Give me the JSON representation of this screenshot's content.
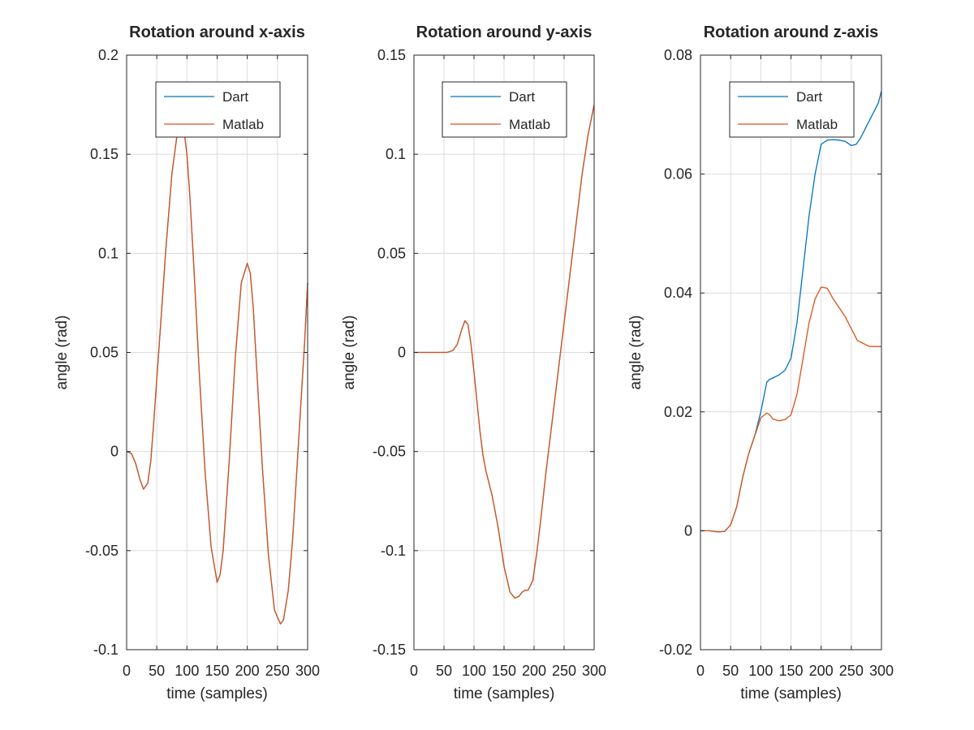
{
  "chart_data": [
    {
      "type": "line",
      "title": "Rotation around x-axis",
      "xlabel": "time (samples)",
      "ylabel": "angle (rad)",
      "xlim": [
        0,
        300
      ],
      "ylim": [
        -0.1,
        0.2
      ],
      "xticks": [
        0,
        50,
        100,
        150,
        200,
        250,
        300
      ],
      "yticks": [
        -0.1,
        -0.05,
        0,
        0.05,
        0.1,
        0.15,
        0.2
      ],
      "xtick_labels": [
        "0",
        "50",
        "100",
        "150",
        "200",
        "250",
        "300"
      ],
      "ytick_labels": [
        "-0.1",
        "-0.05",
        "0",
        "0.05",
        "0.1",
        "0.15",
        "0.2"
      ],
      "grid": true,
      "legend": "top-center",
      "series": [
        {
          "name": "Dart",
          "color": "#0072BD",
          "x": [
            0,
            8,
            15,
            22,
            28,
            35,
            40,
            45,
            55,
            65,
            75,
            85,
            95,
            100,
            105,
            112,
            120,
            130,
            140,
            150,
            155,
            160,
            170,
            180,
            190,
            200,
            205,
            210,
            215,
            225,
            235,
            245,
            255,
            260,
            268,
            275,
            285,
            295,
            300
          ],
          "y": [
            0,
            -0.001,
            -0.006,
            -0.014,
            -0.019,
            -0.016,
            -0.005,
            0.015,
            0.058,
            0.102,
            0.14,
            0.163,
            0.162,
            0.15,
            0.128,
            0.09,
            0.042,
            -0.01,
            -0.048,
            -0.066,
            -0.062,
            -0.05,
            -0.005,
            0.047,
            0.085,
            0.095,
            0.09,
            0.072,
            0.045,
            -0.008,
            -0.052,
            -0.08,
            -0.087,
            -0.085,
            -0.07,
            -0.045,
            0.005,
            0.055,
            0.085
          ]
        },
        {
          "name": "Matlab",
          "color": "#D95319",
          "x": [
            0,
            8,
            15,
            22,
            28,
            35,
            40,
            45,
            55,
            65,
            75,
            85,
            95,
            100,
            105,
            112,
            120,
            130,
            140,
            150,
            155,
            160,
            170,
            180,
            190,
            200,
            205,
            210,
            215,
            225,
            235,
            245,
            255,
            260,
            268,
            275,
            285,
            295,
            300
          ],
          "y": [
            0,
            -0.001,
            -0.006,
            -0.014,
            -0.019,
            -0.016,
            -0.005,
            0.015,
            0.058,
            0.102,
            0.14,
            0.163,
            0.162,
            0.15,
            0.128,
            0.09,
            0.042,
            -0.01,
            -0.048,
            -0.066,
            -0.062,
            -0.05,
            -0.005,
            0.047,
            0.085,
            0.095,
            0.09,
            0.072,
            0.045,
            -0.008,
            -0.052,
            -0.08,
            -0.087,
            -0.085,
            -0.07,
            -0.045,
            0.005,
            0.055,
            0.085
          ]
        }
      ]
    },
    {
      "type": "line",
      "title": "Rotation around y-axis",
      "xlabel": "time (samples)",
      "ylabel": "angle (rad)",
      "xlim": [
        0,
        300
      ],
      "ylim": [
        -0.15,
        0.15
      ],
      "xticks": [
        0,
        50,
        100,
        150,
        200,
        250,
        300
      ],
      "yticks": [
        -0.15,
        -0.1,
        -0.05,
        0,
        0.05,
        0.1,
        0.15
      ],
      "xtick_labels": [
        "0",
        "50",
        "100",
        "150",
        "200",
        "250",
        "300"
      ],
      "ytick_labels": [
        "-0.15",
        "-0.1",
        "-0.05",
        "0",
        "0.05",
        "0.1",
        "0.15"
      ],
      "grid": true,
      "legend": "top-center",
      "series": [
        {
          "name": "Dart",
          "color": "#0072BD",
          "x": [
            0,
            20,
            40,
            55,
            65,
            72,
            80,
            85,
            90,
            95,
            100,
            105,
            110,
            115,
            120,
            130,
            140,
            150,
            160,
            168,
            175,
            180,
            185,
            190,
            198,
            205,
            212,
            220,
            230,
            240,
            250,
            260,
            270,
            280,
            290,
            300
          ],
          "y": [
            0,
            0,
            0,
            0,
            0.001,
            0.004,
            0.012,
            0.016,
            0.014,
            0.004,
            -0.01,
            -0.025,
            -0.04,
            -0.052,
            -0.06,
            -0.072,
            -0.088,
            -0.108,
            -0.121,
            -0.124,
            -0.123,
            -0.121,
            -0.12,
            -0.12,
            -0.115,
            -0.1,
            -0.082,
            -0.06,
            -0.035,
            -0.01,
            0.015,
            0.04,
            0.065,
            0.09,
            0.11,
            0.125
          ]
        },
        {
          "name": "Matlab",
          "color": "#D95319",
          "x": [
            0,
            20,
            40,
            55,
            65,
            72,
            80,
            85,
            90,
            95,
            100,
            105,
            110,
            115,
            120,
            130,
            140,
            150,
            160,
            168,
            175,
            180,
            185,
            190,
            198,
            205,
            212,
            220,
            230,
            240,
            250,
            260,
            270,
            280,
            290,
            300
          ],
          "y": [
            0,
            0,
            0,
            0,
            0.001,
            0.004,
            0.012,
            0.016,
            0.014,
            0.004,
            -0.01,
            -0.025,
            -0.04,
            -0.052,
            -0.06,
            -0.072,
            -0.088,
            -0.108,
            -0.121,
            -0.124,
            -0.123,
            -0.121,
            -0.12,
            -0.12,
            -0.115,
            -0.1,
            -0.082,
            -0.06,
            -0.035,
            -0.01,
            0.015,
            0.04,
            0.065,
            0.09,
            0.11,
            0.125
          ]
        }
      ]
    },
    {
      "type": "line",
      "title": "Rotation around z-axis",
      "xlabel": "time (samples)",
      "ylabel": "angle (rad)",
      "xlim": [
        0,
        300
      ],
      "ylim": [
        -0.02,
        0.08
      ],
      "xticks": [
        0,
        50,
        100,
        150,
        200,
        250,
        300
      ],
      "yticks": [
        -0.02,
        0,
        0.02,
        0.04,
        0.06,
        0.08
      ],
      "xtick_labels": [
        "0",
        "50",
        "100",
        "150",
        "200",
        "250",
        "300"
      ],
      "ytick_labels": [
        "-0.02",
        "0",
        "0.02",
        "0.04",
        "0.06",
        "0.08"
      ],
      "grid": true,
      "legend": "top-center",
      "series": [
        {
          "name": "Dart",
          "color": "#0072BD",
          "x": [
            0,
            15,
            30,
            40,
            50,
            60,
            70,
            80,
            90,
            100,
            110,
            115,
            120,
            130,
            140,
            150,
            160,
            170,
            180,
            190,
            200,
            210,
            220,
            230,
            240,
            250,
            258,
            265,
            275,
            285,
            295,
            300
          ],
          "y": [
            0,
            0,
            -0.0002,
            -0.0001,
            0.001,
            0.004,
            0.009,
            0.013,
            0.016,
            0.02,
            0.025,
            0.0255,
            0.0257,
            0.0262,
            0.027,
            0.029,
            0.035,
            0.044,
            0.053,
            0.06,
            0.065,
            0.0657,
            0.0658,
            0.0657,
            0.0655,
            0.0648,
            0.065,
            0.066,
            0.068,
            0.07,
            0.072,
            0.074
          ]
        },
        {
          "name": "Matlab",
          "color": "#D95319",
          "x": [
            0,
            15,
            30,
            40,
            50,
            60,
            70,
            80,
            90,
            100,
            110,
            115,
            120,
            130,
            140,
            150,
            160,
            170,
            180,
            190,
            200,
            210,
            220,
            230,
            240,
            250,
            260,
            270,
            280,
            290,
            300
          ],
          "y": [
            0,
            0,
            -0.0002,
            -0.0001,
            0.001,
            0.004,
            0.009,
            0.013,
            0.016,
            0.019,
            0.0198,
            0.0195,
            0.0188,
            0.0185,
            0.0187,
            0.0195,
            0.023,
            0.029,
            0.035,
            0.039,
            0.041,
            0.0408,
            0.039,
            0.0375,
            0.036,
            0.034,
            0.032,
            0.0315,
            0.031,
            0.031,
            0.031
          ]
        }
      ]
    }
  ]
}
